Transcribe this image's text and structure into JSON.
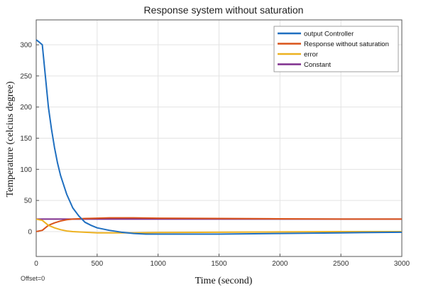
{
  "chart_data": {
    "type": "line",
    "title": "Response system without saturation",
    "xlabel": "Time (second)",
    "ylabel": "Temperature (celcius degree)",
    "xlim": [
      0,
      3000
    ],
    "ylim": [
      -40,
      340
    ],
    "xticks": [
      0,
      500,
      1000,
      1500,
      2000,
      2500,
      3000
    ],
    "yticks": [
      0,
      50,
      100,
      150,
      200,
      250,
      300
    ],
    "grid": true,
    "legend_position": "top-right",
    "annotation": "Offset=0",
    "series": [
      {
        "name": "output Controller",
        "color": "#1f6fc0",
        "x": [
          0,
          20,
          50,
          75,
          100,
          125,
          150,
          175,
          200,
          250,
          300,
          350,
          400,
          450,
          500,
          600,
          700,
          800,
          900,
          1000,
          1200,
          1500,
          2000,
          2500,
          3000
        ],
        "y": [
          308,
          305,
          300,
          250,
          200,
          165,
          135,
          110,
          90,
          60,
          38,
          25,
          15,
          10,
          6,
          2,
          -1,
          -3,
          -4,
          -4,
          -4,
          -4,
          -3,
          -2,
          -1
        ]
      },
      {
        "name": "Response without saturation",
        "color": "#d95319",
        "x": [
          0,
          50,
          100,
          150,
          200,
          250,
          300,
          350,
          400,
          500,
          600,
          800,
          1000,
          1500,
          2000,
          2500,
          3000
        ],
        "y": [
          0,
          2,
          10,
          14,
          17,
          19,
          20,
          20.5,
          21,
          21.5,
          22,
          22,
          21.5,
          21,
          20.5,
          20,
          20
        ]
      },
      {
        "name": "error",
        "color": "#edb120",
        "x": [
          0,
          50,
          100,
          150,
          200,
          250,
          300,
          400,
          500,
          600,
          800,
          1000,
          1500,
          2000,
          2500,
          3000
        ],
        "y": [
          20,
          18,
          10,
          6,
          3,
          1,
          0,
          -1,
          -2,
          -2,
          -2,
          -1.5,
          -1,
          -0.5,
          0,
          0
        ]
      },
      {
        "name": "Constant",
        "color": "#7e2f8e",
        "x": [
          0,
          3000
        ],
        "y": [
          20,
          20
        ]
      }
    ]
  }
}
